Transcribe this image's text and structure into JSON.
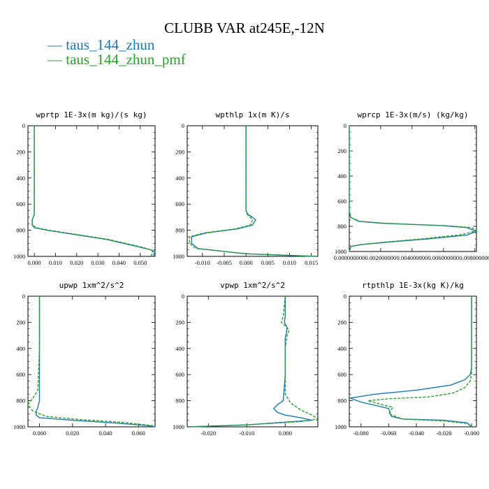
{
  "title": "CLUBB VAR at245E,-12N",
  "legend": [
    {
      "label": "taus_144_zhun",
      "color": "#1f77b4",
      "dash": "solid"
    },
    {
      "label": "taus_144_zhun_pmf",
      "color": "#2ca02c",
      "dash": "dashed"
    }
  ],
  "colors": {
    "series1": "#1f77b4",
    "series2": "#2ca02c"
  },
  "chart_data": [
    {
      "type": "line",
      "title": "wprtp  1E-3x(m kg)/(s kg)",
      "xlim": [
        -0.003,
        0.057
      ],
      "ylim": [
        0,
        1000
      ],
      "y_inverted": true,
      "xticks": [
        0.0,
        0.01,
        0.02,
        0.03,
        0.04,
        0.05
      ],
      "xtick_labels": [
        "0.000",
        "0.010",
        "0.020",
        "0.030",
        "0.040",
        "0.050"
      ],
      "yticks": [
        0,
        200,
        400,
        600,
        800,
        1000
      ],
      "ytick_labels": [
        "0",
        "200",
        "400",
        "600",
        "800",
        "1000"
      ],
      "series": [
        {
          "name": "taus_144_zhun",
          "color": "#1f77b4",
          "dash": "solid",
          "x": [
            0.0,
            0.0,
            0.0,
            0.0,
            0.0,
            -0.001,
            -0.001,
            0.0,
            0.006,
            0.014,
            0.024,
            0.034,
            0.042,
            0.05,
            0.055,
            0.057,
            0.056
          ],
          "y": [
            0,
            200,
            400,
            600,
            680,
            720,
            760,
            780,
            800,
            820,
            845,
            870,
            900,
            930,
            950,
            965,
            1000
          ]
        },
        {
          "name": "taus_144_zhun_pmf",
          "color": "#2ca02c",
          "dash": "dashed",
          "x": [
            0.0,
            0.0,
            0.0,
            0.0,
            0.0,
            -0.001,
            -0.001,
            0.001,
            0.007,
            0.015,
            0.025,
            0.035,
            0.043,
            0.051,
            0.055,
            0.056,
            0.055
          ],
          "y": [
            0,
            200,
            400,
            600,
            680,
            720,
            760,
            780,
            800,
            820,
            845,
            870,
            900,
            930,
            950,
            965,
            1000
          ]
        }
      ]
    },
    {
      "type": "line",
      "title": "wpthlp  1x(m K)/s",
      "xlim": [
        -0.0135,
        0.0165
      ],
      "ylim": [
        0,
        1000
      ],
      "y_inverted": true,
      "xticks": [
        -0.01,
        -0.005,
        0.0,
        0.005,
        0.01,
        0.015
      ],
      "xtick_labels": [
        "-0.010",
        "-0.005",
        "0.000",
        "0.005",
        "0.010",
        "0.015"
      ],
      "yticks": [
        0,
        200,
        400,
        600,
        800,
        1000
      ],
      "ytick_labels": [
        "0",
        "200",
        "400",
        "600",
        "800",
        "1000"
      ],
      "series": [
        {
          "name": "taus_144_zhun",
          "color": "#1f77b4",
          "dash": "solid",
          "x": [
            0.0,
            0.0,
            0.0,
            0.0,
            0.0,
            0.0,
            0.0005,
            0.0015,
            0.0022,
            0.0015,
            -0.002,
            -0.009,
            -0.0125,
            -0.0125,
            -0.011,
            0.0,
            0.016
          ],
          "y": [
            0,
            120,
            200,
            400,
            600,
            650,
            680,
            700,
            720,
            760,
            790,
            820,
            850,
            900,
            940,
            980,
            1000
          ]
        },
        {
          "name": "taus_144_zhun_pmf",
          "color": "#2ca02c",
          "dash": "dashed",
          "x": [
            0.0,
            0.0,
            0.0,
            0.0,
            0.0,
            0.0,
            0.0003,
            0.001,
            0.0015,
            0.001,
            -0.0025,
            -0.0095,
            -0.013,
            -0.013,
            -0.0115,
            0.0,
            0.0165
          ],
          "y": [
            0,
            120,
            200,
            400,
            600,
            650,
            680,
            700,
            720,
            760,
            790,
            820,
            850,
            900,
            940,
            980,
            1000
          ]
        }
      ]
    },
    {
      "type": "line",
      "title": "wprcp  1E-3x(m/s) (kg/kg)",
      "xlim": [
        0.0,
        0.0081
      ],
      "ylim": [
        0,
        1000
      ],
      "y_inverted": true,
      "xticks": [
        0.0,
        0.002,
        0.004,
        0.006,
        0.008
      ],
      "xtick_labels": [
        "0.000000000",
        "0.002000000",
        "0.004000000",
        "0.006000000",
        "0.008000000"
      ],
      "yticks": [
        0,
        200,
        400,
        600,
        800,
        1000
      ],
      "ytick_labels": [
        "0",
        "200",
        "400",
        "600",
        "800",
        "1000"
      ],
      "series": [
        {
          "name": "taus_144_zhun",
          "color": "#1f77b4",
          "dash": "solid",
          "x": [
            0.0,
            0.0,
            0.0,
            0.0001,
            0.0006,
            0.002,
            0.004,
            0.006,
            0.0075,
            0.0081,
            0.0075,
            0.005,
            0.0025,
            0.0008,
            0.0001,
            0.0
          ],
          "y": [
            0,
            400,
            680,
            730,
            760,
            775,
            785,
            795,
            810,
            840,
            870,
            900,
            925,
            945,
            960,
            1000
          ]
        },
        {
          "name": "taus_144_zhun_pmf",
          "color": "#2ca02c",
          "dash": "dashed",
          "x": [
            0.0,
            0.0,
            0.0,
            0.0001,
            0.0007,
            0.0022,
            0.0042,
            0.0062,
            0.0078,
            0.0081,
            0.0072,
            0.0048,
            0.0023,
            0.0007,
            0.0001,
            0.0
          ],
          "y": [
            0,
            400,
            680,
            730,
            760,
            775,
            785,
            795,
            810,
            835,
            865,
            898,
            925,
            945,
            960,
            1000
          ]
        }
      ]
    },
    {
      "type": "line",
      "title": "upwp  1xm^2/s^2",
      "xlim": [
        -0.007,
        0.07
      ],
      "ylim": [
        0,
        1000
      ],
      "y_inverted": true,
      "xticks": [
        0.0,
        0.02,
        0.04,
        0.06
      ],
      "xtick_labels": [
        "0.000",
        "0.020",
        "0.040",
        "0.060"
      ],
      "yticks": [
        0,
        200,
        400,
        600,
        800,
        1000
      ],
      "ytick_labels": [
        "0",
        "200",
        "400",
        "600",
        "800",
        "1000"
      ],
      "series": [
        {
          "name": "taus_144_zhun",
          "color": "#1f77b4",
          "dash": "solid",
          "x": [
            0.0,
            0.0,
            0.0,
            0.0,
            0.0,
            -0.001,
            -0.002,
            -0.002,
            0.0,
            0.02,
            0.045,
            0.065,
            0.07
          ],
          "y": [
            0,
            200,
            250,
            400,
            800,
            850,
            880,
            910,
            930,
            950,
            970,
            990,
            1000
          ]
        },
        {
          "name": "taus_144_zhun_pmf",
          "color": "#2ca02c",
          "dash": "dashed",
          "x": [
            0.0,
            0.0,
            0.0,
            0.0,
            -0.001,
            -0.004,
            -0.007,
            -0.004,
            0.004,
            0.025,
            0.05,
            0.068,
            0.07
          ],
          "y": [
            0,
            200,
            250,
            400,
            720,
            780,
            830,
            880,
            920,
            945,
            965,
            990,
            1000
          ]
        }
      ]
    },
    {
      "type": "line",
      "title": "vpwp  1xm^2/s^2",
      "xlim": [
        -0.0255,
        0.0085
      ],
      "ylim": [
        0,
        1000
      ],
      "y_inverted": true,
      "xticks": [
        -0.02,
        -0.01,
        0.0
      ],
      "xtick_labels": [
        "-0.020",
        "-0.010",
        "0.000"
      ],
      "yticks": [
        0,
        200,
        400,
        600,
        800,
        1000
      ],
      "ytick_labels": [
        "0",
        "200",
        "400",
        "600",
        "800",
        "1000"
      ],
      "series": [
        {
          "name": "taus_144_zhun",
          "color": "#1f77b4",
          "dash": "solid",
          "x": [
            0.0,
            0.0,
            -0.0002,
            0.0005,
            0.0003,
            0.0,
            0.0,
            -0.0005,
            -0.002,
            -0.003,
            -0.002,
            0.0,
            0.004,
            0.007,
            -0.01,
            -0.025
          ],
          "y": [
            0,
            150,
            200,
            240,
            280,
            320,
            600,
            800,
            830,
            860,
            890,
            910,
            930,
            950,
            985,
            1000
          ]
        },
        {
          "name": "taus_144_zhun_pmf",
          "color": "#2ca02c",
          "dash": "dashed",
          "x": [
            0.0,
            -0.0005,
            -0.001,
            0.0005,
            0.001,
            0.0005,
            0.0,
            0.0,
            0.0015,
            0.004,
            0.007,
            0.0085,
            0.004,
            -0.01,
            -0.025
          ],
          "y": [
            0,
            150,
            200,
            240,
            260,
            300,
            400,
            750,
            820,
            870,
            910,
            940,
            960,
            985,
            1000
          ]
        }
      ]
    },
    {
      "type": "line",
      "title": "rtpthlp  1E-3x(kg K)/kg",
      "xlim": [
        -0.0885,
        0.0035
      ],
      "ylim": [
        0,
        1000
      ],
      "y_inverted": true,
      "xticks": [
        -0.08,
        -0.06,
        -0.04,
        -0.02,
        0.0
      ],
      "xtick_labels": [
        "-0.080",
        "-0.060",
        "-0.040",
        "-0.020",
        "-0.000"
      ],
      "yticks": [
        0,
        200,
        400,
        600,
        800,
        1000
      ],
      "ytick_labels": [
        "0",
        "200",
        "400",
        "600",
        "800",
        "1000"
      ],
      "series": [
        {
          "name": "taus_144_zhun",
          "color": "#1f77b4",
          "dash": "solid",
          "x": [
            0.0,
            0.0,
            -0.001,
            -0.005,
            -0.015,
            -0.04,
            -0.07,
            -0.088,
            -0.08,
            -0.06,
            -0.058,
            -0.05,
            -0.02,
            -0.003,
            0.0
          ],
          "y": [
            0,
            550,
            600,
            640,
            680,
            720,
            750,
            780,
            810,
            860,
            920,
            940,
            950,
            970,
            1000
          ]
        },
        {
          "name": "taus_144_zhun_pmf",
          "color": "#2ca02c",
          "dash": "dashed",
          "x": [
            0.0,
            0.0,
            -0.001,
            -0.005,
            -0.013,
            -0.03,
            -0.06,
            -0.075,
            -0.065,
            -0.057,
            -0.06,
            -0.05,
            -0.02,
            -0.003,
            0.0
          ],
          "y": [
            0,
            580,
            650,
            700,
            740,
            770,
            785,
            800,
            830,
            850,
            900,
            940,
            955,
            975,
            1000
          ]
        }
      ]
    }
  ]
}
